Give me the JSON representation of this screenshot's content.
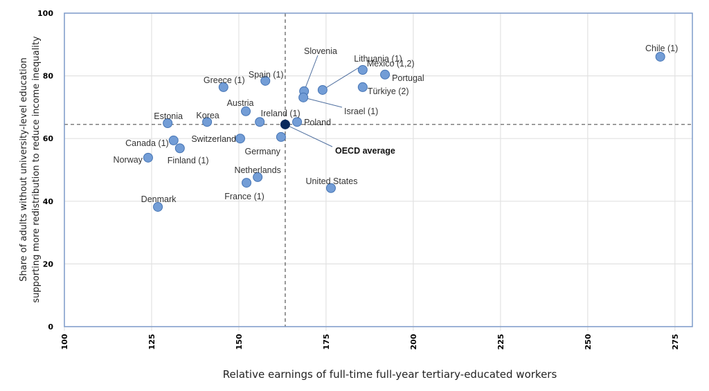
{
  "chart_data": {
    "type": "scatter",
    "title": "",
    "xlabel": "Relative earnings of full-time full-year tertiary-educated workers",
    "ylabel_lines": [
      "Share of adults without university-level education",
      "supporting more redistribution to reduce income inequality"
    ],
    "xlim": [
      100,
      280
    ],
    "ylim": [
      0,
      100
    ],
    "x_ticks": [
      100,
      125,
      150,
      175,
      200,
      225,
      250,
      275
    ],
    "y_ticks": [
      0,
      20,
      40,
      60,
      80,
      100
    ],
    "grid": true,
    "reference_lines": {
      "x": 163.3,
      "y": 64.5,
      "style": "dashed"
    },
    "colors": {
      "point_fill": "#739dd6",
      "point_stroke": "#4574b4",
      "highlight_fill": "#0b2a5c",
      "axis": "#7d9bca",
      "grid": "#e2e2e2",
      "reference": "#555555",
      "leader": "#4f6f9f"
    },
    "points": [
      {
        "label": "Chile (1)",
        "x": 270.8,
        "y": 86.1
      },
      {
        "label": "Mexico (1,2)",
        "x": 185.5,
        "y": 81.9
      },
      {
        "label": "Portugal",
        "x": 191.9,
        "y": 80.4
      },
      {
        "label": "Türkiye (2)",
        "x": 185.5,
        "y": 76.4
      },
      {
        "label": "Lithuania (1)",
        "x": 174.0,
        "y": 75.5
      },
      {
        "label": "Slovenia",
        "x": 168.7,
        "y": 75.1
      },
      {
        "label": "Israel (1)",
        "x": 168.5,
        "y": 73.1
      },
      {
        "label": "Spain (1)",
        "x": 157.6,
        "y": 78.4
      },
      {
        "label": "Greece (1)",
        "x": 145.6,
        "y": 76.4
      },
      {
        "label": "Austria",
        "x": 152.0,
        "y": 68.7
      },
      {
        "label": "Ireland (1)",
        "x": 156.0,
        "y": 65.3
      },
      {
        "label": "Korea",
        "x": 140.9,
        "y": 65.3
      },
      {
        "label": "Estonia",
        "x": 129.6,
        "y": 64.9
      },
      {
        "label": "Poland",
        "x": 166.7,
        "y": 65.3
      },
      {
        "label": "Germany",
        "x": 162.1,
        "y": 60.5
      },
      {
        "label": "Switzerland",
        "x": 150.4,
        "y": 60.0
      },
      {
        "label": "Canada (1)",
        "x": 131.3,
        "y": 59.4
      },
      {
        "label": "Finland (1)",
        "x": 133.1,
        "y": 56.9
      },
      {
        "label": "Norway",
        "x": 124.0,
        "y": 53.9
      },
      {
        "label": "Netherlands",
        "x": 155.4,
        "y": 47.7
      },
      {
        "label": "France (1)",
        "x": 152.2,
        "y": 45.9
      },
      {
        "label": "United States",
        "x": 176.4,
        "y": 44.2
      },
      {
        "label": "Denmark",
        "x": 126.8,
        "y": 38.2
      },
      {
        "label": "OECD average",
        "x": 163.3,
        "y": 64.5,
        "highlight": true
      }
    ]
  }
}
